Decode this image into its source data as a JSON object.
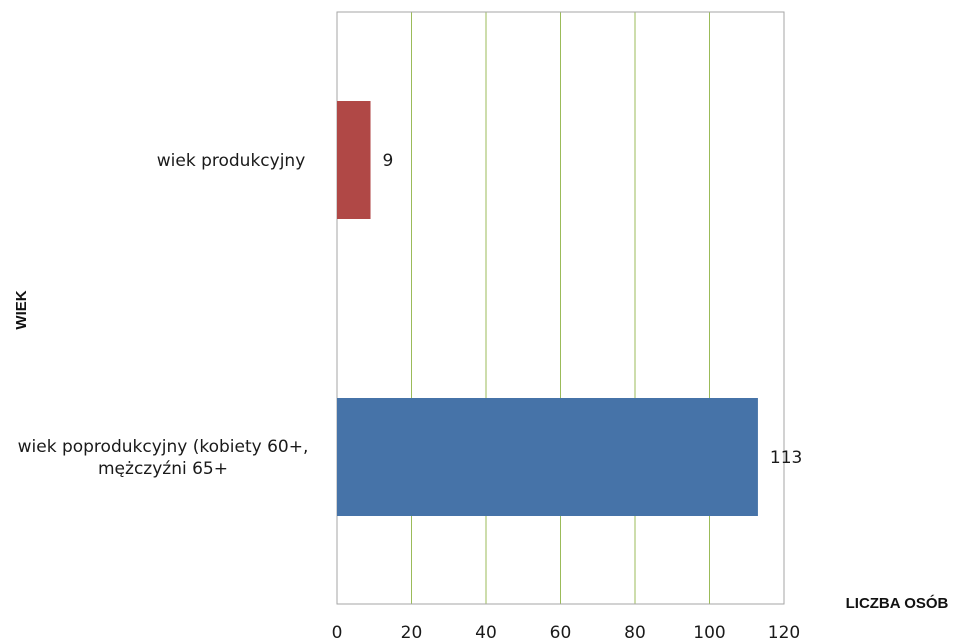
{
  "chart_data": {
    "type": "bar",
    "orientation": "horizontal",
    "categories": [
      "wiek produkcyjny",
      "wiek poprodukcyjny (kobiety 60+, mężczyźni 65+"
    ],
    "category_label_lines": [
      [
        "wiek produkcyjny"
      ],
      [
        "wiek poprodukcyjny (kobiety 60+,",
        "mężczyźni 65+"
      ]
    ],
    "values": [
      9,
      113
    ],
    "data_labels": [
      "9",
      "113"
    ],
    "bar_colors": [
      "#B04846",
      "#4673A8"
    ],
    "xlabel": "LICZBA OSÓB",
    "ylabel": "WIEK",
    "xlim": [
      0,
      120
    ],
    "xticks": [
      0,
      20,
      40,
      60,
      80,
      100,
      120
    ],
    "gridlines": "vertical",
    "gridline_color": "#9BBB59",
    "legend": "none"
  }
}
